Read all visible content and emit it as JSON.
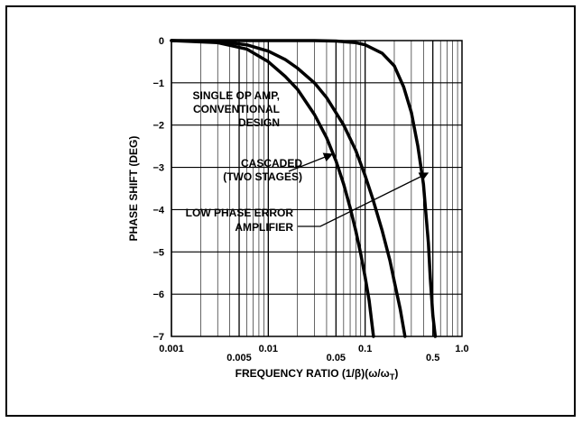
{
  "chart_data": {
    "type": "line",
    "title": "",
    "xlabel": "FREQUENCY RATIO (1/β)(ω/ω",
    "xlabel_sub": "T",
    "xlabel_tail": ")",
    "ylabel": "PHASE SHIFT (DEG)",
    "xscale": "log",
    "xlim": [
      0.001,
      1.0
    ],
    "ylim": [
      -7,
      0
    ],
    "grid": true,
    "legend": "none",
    "x_ticks": [
      {
        "value": 0.001,
        "label": "0.001",
        "row": 0
      },
      {
        "value": 0.005,
        "label": "0.005",
        "row": 1
      },
      {
        "value": 0.01,
        "label": "0.01",
        "row": 0
      },
      {
        "value": 0.05,
        "label": "0.05",
        "row": 1
      },
      {
        "value": 0.1,
        "label": "0.1",
        "row": 0
      },
      {
        "value": 0.5,
        "label": "0.5",
        "row": 1
      },
      {
        "value": 1.0,
        "label": "1.0",
        "row": 0
      }
    ],
    "y_ticks": [
      {
        "value": 0,
        "label": "0"
      },
      {
        "value": -1,
        "label": "−1"
      },
      {
        "value": -2,
        "label": "−2"
      },
      {
        "value": -3,
        "label": "−3"
      },
      {
        "value": -4,
        "label": "−4"
      },
      {
        "value": -5,
        "label": "−5"
      },
      {
        "value": -6,
        "label": "−6"
      },
      {
        "value": -7,
        "label": "−7"
      }
    ],
    "series": [
      {
        "id": "single",
        "x": [
          0.001,
          0.003,
          0.006,
          0.01,
          0.015,
          0.02,
          0.03,
          0.04,
          0.05,
          0.06,
          0.07,
          0.08,
          0.09,
          0.1,
          0.11,
          0.122
        ],
        "y": [
          0,
          -0.05,
          -0.2,
          -0.5,
          -0.85,
          -1.15,
          -1.75,
          -2.3,
          -2.85,
          -3.4,
          -3.95,
          -4.5,
          -5.05,
          -5.6,
          -6.15,
          -7.0
        ]
      },
      {
        "id": "cascaded",
        "x": [
          0.001,
          0.003,
          0.006,
          0.01,
          0.015,
          0.02,
          0.03,
          0.04,
          0.06,
          0.08,
          0.1,
          0.12,
          0.15,
          0.18,
          0.2,
          0.23,
          0.258
        ],
        "y": [
          0,
          -0.02,
          -0.1,
          -0.25,
          -0.45,
          -0.65,
          -1.0,
          -1.35,
          -2.0,
          -2.6,
          -3.2,
          -3.75,
          -4.5,
          -5.2,
          -5.7,
          -6.35,
          -7.0
        ]
      },
      {
        "id": "low_phase_error",
        "x": [
          0.001,
          0.03,
          0.05,
          0.08,
          0.1,
          0.15,
          0.2,
          0.25,
          0.3,
          0.35,
          0.4,
          0.45,
          0.47,
          0.5,
          0.53
        ],
        "y": [
          0,
          0,
          -0.01,
          -0.05,
          -0.1,
          -0.3,
          -0.6,
          -1.1,
          -1.7,
          -2.5,
          -3.4,
          -4.8,
          -5.6,
          -6.5,
          -7.0
        ]
      }
    ],
    "annotations": [
      {
        "id": "ann-single",
        "lines": [
          "SINGLE OP AMP,",
          "CONVENTIONAL",
          "DESIGN"
        ]
      },
      {
        "id": "ann-cascaded",
        "lines": [
          "CASCADED",
          "(TWO STAGES)"
        ]
      },
      {
        "id": "ann-low",
        "lines": [
          "LOW PHASE ERROR",
          "AMPLIFIER"
        ]
      }
    ]
  }
}
